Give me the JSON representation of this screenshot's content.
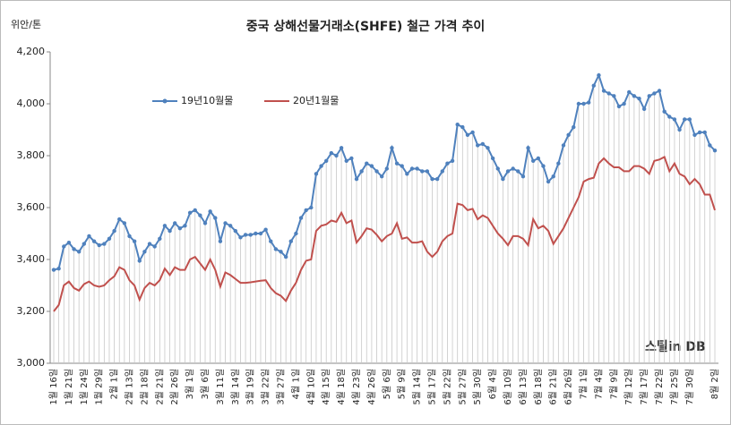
{
  "chart_data": {
    "type": "line",
    "title": "중국 상해선물거래소(SHFE)  철근 가격 추이",
    "y_label": "위안/톤",
    "watermark": "스틸in DB",
    "categories": [
      "1월 16일",
      null,
      null,
      "1월 21일",
      null,
      null,
      "1월 24일",
      null,
      null,
      "1월 29일",
      null,
      null,
      "2월 1일",
      null,
      null,
      "2월 13일",
      null,
      null,
      "2월 18일",
      null,
      null,
      "2월 21일",
      null,
      null,
      "2월 26일",
      null,
      null,
      "3월 1일",
      null,
      null,
      "3월 6일",
      null,
      null,
      "3월 11일",
      null,
      null,
      "3월 14일",
      null,
      null,
      "3월 19일",
      null,
      null,
      "3월 22일",
      null,
      null,
      "3월 27일",
      null,
      null,
      "4월 1일",
      null,
      null,
      "4월 10일",
      null,
      null,
      "4월 15일",
      null,
      null,
      "4월 18일",
      null,
      null,
      "4월 23일",
      null,
      null,
      "4월 26일",
      null,
      null,
      "5월 6일",
      null,
      null,
      "5월 9일",
      null,
      null,
      "5월 14일",
      null,
      null,
      "5월 17일",
      null,
      null,
      "5월 22일",
      null,
      null,
      "5월 27일",
      null,
      null,
      "5월 30일",
      null,
      null,
      "6월 4일",
      null,
      null,
      "6월 10일",
      null,
      null,
      "6월 13일",
      null,
      null,
      "6월 18일",
      null,
      null,
      "6월 21일",
      null,
      null,
      "6월 26일",
      null,
      null,
      "7월 1일",
      null,
      null,
      "7월 4일",
      null,
      null,
      "7월 9일",
      null,
      null,
      "7월 12일",
      null,
      null,
      "7월 17일",
      null,
      null,
      "7월 22일",
      null,
      null,
      "7월 25일",
      null,
      null,
      "7월 30일",
      null,
      null,
      null,
      null,
      "8월 2일"
    ],
    "series": [
      {
        "name": "19년10월물",
        "color": "#4f81bd",
        "values": [
          3360,
          3365,
          3450,
          3465,
          3440,
          3430,
          3460,
          3490,
          3470,
          3455,
          3460,
          3480,
          3510,
          3555,
          3540,
          3490,
          3470,
          3395,
          3430,
          3460,
          3450,
          3480,
          3530,
          3510,
          3540,
          3520,
          3530,
          3580,
          3590,
          3570,
          3540,
          3585,
          3560,
          3470,
          3540,
          3530,
          3510,
          3485,
          3495,
          3495,
          3500,
          3500,
          3515,
          3470,
          3440,
          3430,
          3410,
          3470,
          3500,
          3560,
          3590,
          3600,
          3730,
          3760,
          3780,
          3810,
          3800,
          3830,
          3780,
          3790,
          3710,
          3740,
          3770,
          3760,
          3740,
          3720,
          3750,
          3830,
          3770,
          3760,
          3730,
          3750,
          3750,
          3740,
          3740,
          3710,
          3710,
          3740,
          3770,
          3780,
          3920,
          3910,
          3880,
          3890,
          3840,
          3845,
          3830,
          3790,
          3750,
          3710,
          3740,
          3750,
          3740,
          3720,
          3830,
          3780,
          3790,
          3760,
          3700,
          3720,
          3770,
          3840,
          3880,
          3910,
          4000,
          4000,
          4005,
          4070,
          4110,
          4050,
          4040,
          4030,
          3990,
          4000,
          4045,
          4030,
          4020,
          3980,
          4030,
          4040,
          4050,
          3970,
          3950,
          3940,
          3900,
          3940,
          3940,
          3880,
          3890,
          3890,
          3840,
          3820
        ]
      },
      {
        "name": "20년1월물",
        "color": "#c0504d",
        "values": [
          3200,
          3225,
          3300,
          3315,
          3290,
          3280,
          3305,
          3315,
          3300,
          3295,
          3300,
          3320,
          3335,
          3370,
          3360,
          3320,
          3300,
          3245,
          3290,
          3310,
          3300,
          3320,
          3365,
          3340,
          3370,
          3360,
          3360,
          3400,
          3410,
          3385,
          3360,
          3400,
          3360,
          3295,
          3350,
          3340,
          3325,
          3310,
          3310,
          3312,
          3315,
          3318,
          3320,
          3290,
          3270,
          3260,
          3240,
          3280,
          3310,
          3360,
          3395,
          3400,
          3510,
          3530,
          3535,
          3550,
          3545,
          3580,
          3540,
          3550,
          3465,
          3490,
          3520,
          3515,
          3495,
          3470,
          3490,
          3500,
          3540,
          3480,
          3485,
          3465,
          3465,
          3470,
          3430,
          3410,
          3430,
          3470,
          3490,
          3500,
          3615,
          3610,
          3590,
          3595,
          3555,
          3570,
          3560,
          3530,
          3500,
          3480,
          3455,
          3490,
          3490,
          3480,
          3455,
          3555,
          3520,
          3530,
          3510,
          3460,
          3490,
          3520,
          3560,
          3600,
          3640,
          3700,
          3710,
          3715,
          3770,
          3790,
          3770,
          3755,
          3755,
          3740,
          3740,
          3760,
          3760,
          3750,
          3730,
          3780,
          3785,
          3795,
          3740,
          3770,
          3730,
          3720,
          3690,
          3710,
          3690,
          3650,
          3650,
          3590
        ]
      }
    ],
    "ylim": [
      3000,
      4200
    ],
    "yticks": [
      {
        "value": 3000,
        "label": "3,000"
      },
      {
        "value": 3200,
        "label": "3,200"
      },
      {
        "value": 3400,
        "label": "3,400"
      },
      {
        "value": 3600,
        "label": "3,600"
      },
      {
        "value": 3800,
        "label": "3,800"
      },
      {
        "value": 4000,
        "label": "4,000"
      },
      {
        "value": 4200,
        "label": "4,200"
      }
    ],
    "grid": false,
    "drop_lines": true,
    "legend": "upper left"
  }
}
